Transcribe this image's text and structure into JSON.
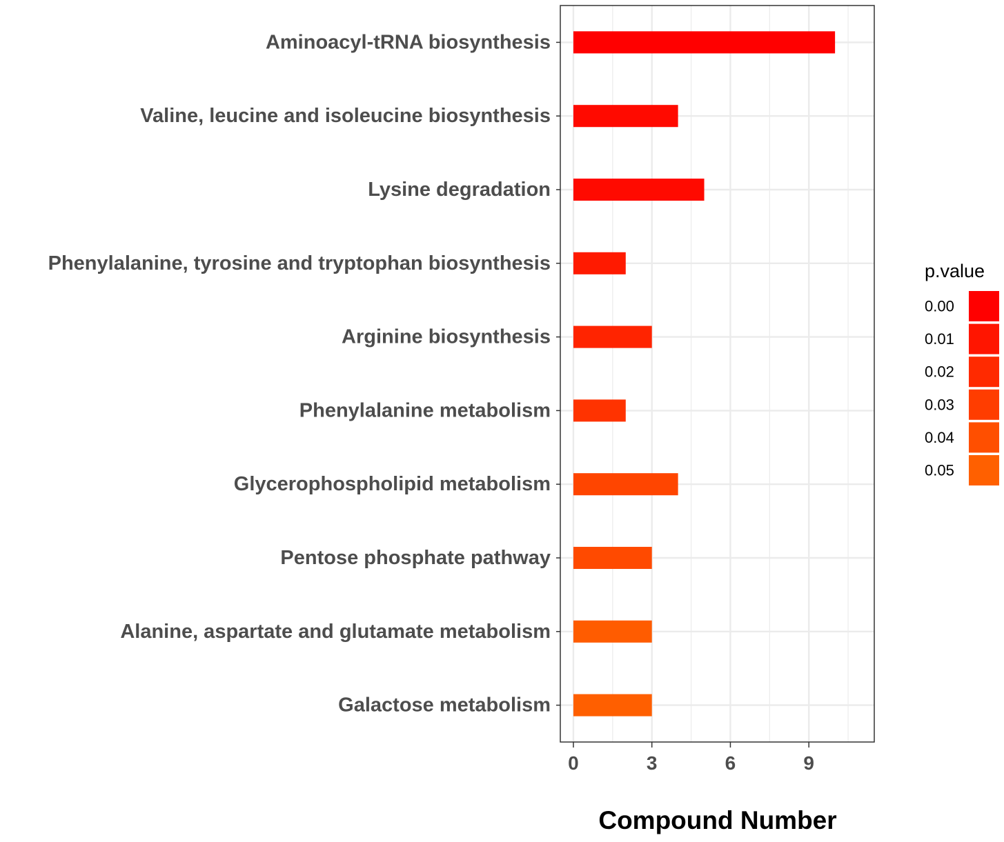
{
  "chart_data": {
    "type": "bar",
    "orientation": "horizontal",
    "categories": [
      "Aminoacyl-tRNA biosynthesis",
      "Valine, leucine and isoleucine biosynthesis",
      "Lysine degradation",
      "Phenylalanine, tyrosine and tryptophan biosynthesis",
      "Arginine biosynthesis",
      "Phenylalanine metabolism",
      "Glycerophospholipid metabolism",
      "Pentose phosphate pathway",
      "Alanine, aspartate and glutamate metabolism",
      "Galactose metabolism"
    ],
    "values": [
      10,
      4,
      5,
      2,
      3,
      2,
      4,
      3,
      3,
      3
    ],
    "bar_colors": [
      "#ff0000",
      "#ff0a00",
      "#ff0a00",
      "#ff1a00",
      "#ff2400",
      "#ff3300",
      "#ff4500",
      "#ff4a00",
      "#ff5c00",
      "#ff5f00"
    ],
    "xlabel": "Compound Number",
    "ylabel": "",
    "xlim": [
      -0.5,
      11.5
    ],
    "xticks": [
      0,
      3,
      6,
      9
    ],
    "grid": true,
    "legend": {
      "title": "p.value",
      "position": "right",
      "entries": [
        {
          "label": "0.00",
          "color": "#ff0000"
        },
        {
          "label": "0.01",
          "color": "#ff1500"
        },
        {
          "label": "0.02",
          "color": "#ff2a00"
        },
        {
          "label": "0.03",
          "color": "#ff3d00"
        },
        {
          "label": "0.04",
          "color": "#ff4f00"
        },
        {
          "label": "0.05",
          "color": "#ff6000"
        }
      ]
    }
  }
}
